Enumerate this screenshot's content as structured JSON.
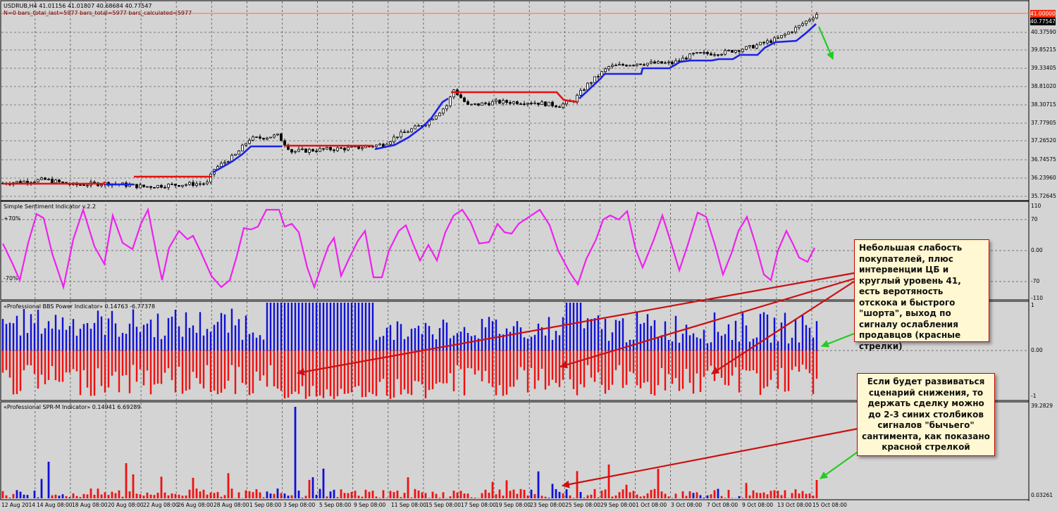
{
  "chart_header": {
    "title": "USDRUB,H4  41.01156 41.01807 40.68684 40.77547",
    "subtitle": "N=0 bars_total_last=5977 bars_total=5977 bars_calculated=5977"
  },
  "colors": {
    "background": "#d4d4d4",
    "bull_line": "#1a22e8",
    "bear_line": "#e81010",
    "sentiment_line": "#ee22ee",
    "power_bull": "#1010d8",
    "power_bear": "#f01010",
    "annotation_arrow_red": "#cc1010",
    "annotation_arrow_green": "#22cc22",
    "price_tag_current": "#000000",
    "price_tag_level": "#ff3010"
  },
  "main_pane": {
    "price_axis": [
      "40.37590",
      "39.85215",
      "39.33405",
      "38.81020",
      "38.30715",
      "37.77905",
      "37.26520",
      "36.74575",
      "36.23960",
      "35.72645"
    ],
    "current_price_tag": "40.77547",
    "level_price_tag": "41.00000",
    "level_price": 41.0
  },
  "sentiment_pane": {
    "title": "Simple Sentiment Indicator v.2.2",
    "upper_level_label": "+70%",
    "lower_level_label": "-70%",
    "axis": [
      "110",
      "70",
      "0.00",
      "-70",
      "-110"
    ]
  },
  "power_pane": {
    "title": "«Professional BBS Power Indicator» 0.14763 -6.77378",
    "axis": [
      "1",
      "0.00",
      "-1"
    ]
  },
  "spr_pane": {
    "title": "«Professional SPR-M Indicator» 0.14941 6.69289",
    "axis": [
      "39.2829",
      "0.03261"
    ]
  },
  "time_axis": [
    "12 Aug 2014",
    "14 Aug 08:00",
    "18 Aug 08:00",
    "20 Aug 08:00",
    "22 Aug 08:00",
    "26 Aug 08:00",
    "28 Aug 08:00",
    "1 Sep 08:00",
    "3 Sep 08:00",
    "5 Sep 08:00",
    "9 Sep 08:00",
    "11 Sep 08:00",
    "15 Sep 08:00",
    "17 Sep 08:00",
    "19 Sep 08:00",
    "23 Sep 08:00",
    "25 Sep 08:00",
    "29 Sep 08:00",
    "1 Oct 08:00",
    "3 Oct 08:00",
    "7 Oct 08:00",
    "9 Oct 08:00",
    "13 Oct 08:00",
    "15 Oct 08:00"
  ],
  "annotations": {
    "note_1": "Небольшая слабость покупателей, плюс интервенции ЦБ и круглый уровень 41, есть веротяность отскока и быстрого \"шорта\", выход по сигналу ослабления продавцов (красные стрелки)",
    "note_2": "Если будет развиваться сценарий снижения, то держать сделку можно до 2-3 синих столбиков сигналов \"бычьего\" сантимента, как показано красной стрелкой"
  }
}
